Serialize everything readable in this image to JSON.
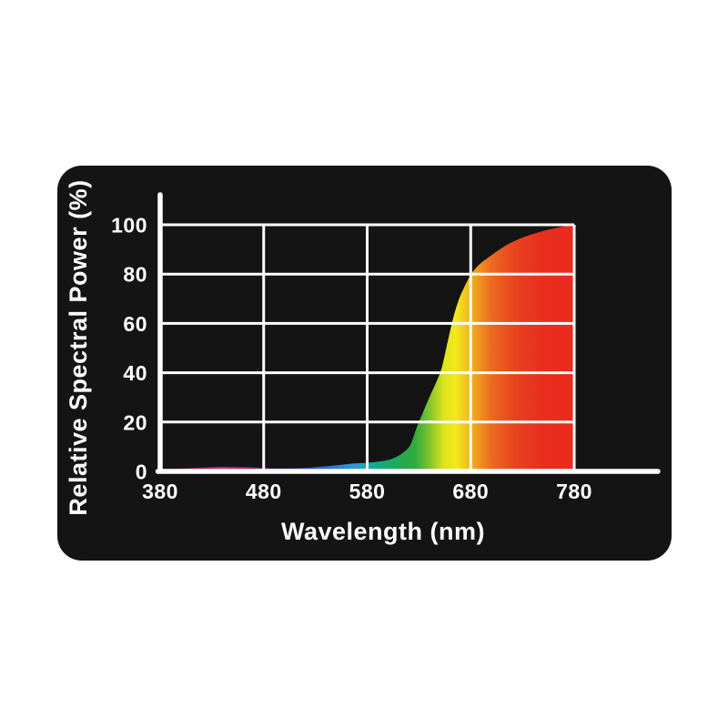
{
  "page": {
    "background_color": "#ffffff",
    "card_color": "#141414"
  },
  "chart_data": {
    "type": "area",
    "title": "",
    "xlabel": "Wavelength (nm)",
    "ylabel": "Relative Spectral Power (%)",
    "x_ticks": [
      "380",
      "480",
      "580",
      "680",
      "780"
    ],
    "y_ticks": [
      "0",
      "20",
      "40",
      "60",
      "80",
      "100"
    ],
    "xlim": [
      380,
      780
    ],
    "ylim": [
      0,
      100
    ],
    "grid": true,
    "grid_color": "#ffffff",
    "axis_color": "#ffffff",
    "fill_style": "spectral-gradient",
    "gradient_stops": [
      {
        "offset": 0.0,
        "color": "#2a081c"
      },
      {
        "offset": 0.055,
        "color": "#7c1751"
      },
      {
        "offset": 0.14,
        "color": "#c12b7d"
      },
      {
        "offset": 0.2,
        "color": "#ad2a78"
      },
      {
        "offset": 0.265,
        "color": "#7c2c82"
      },
      {
        "offset": 0.33,
        "color": "#40419f"
      },
      {
        "offset": 0.405,
        "color": "#2b72c8"
      },
      {
        "offset": 0.47,
        "color": "#2f9dd8"
      },
      {
        "offset": 0.52,
        "color": "#18a88c"
      },
      {
        "offset": 0.565,
        "color": "#1ea95a"
      },
      {
        "offset": 0.615,
        "color": "#2fab40"
      },
      {
        "offset": 0.65,
        "color": "#7fc42e"
      },
      {
        "offset": 0.685,
        "color": "#dfe31d"
      },
      {
        "offset": 0.715,
        "color": "#f2ea1b"
      },
      {
        "offset": 0.752,
        "color": "#f0b01d"
      },
      {
        "offset": 0.8,
        "color": "#ec6a20"
      },
      {
        "offset": 0.858,
        "color": "#e8431f"
      },
      {
        "offset": 0.92,
        "color": "#e92f1d"
      },
      {
        "offset": 1.0,
        "color": "#ea291d"
      }
    ],
    "points": [
      [
        380,
        0.2
      ],
      [
        392,
        0.8
      ],
      [
        405,
        1.3
      ],
      [
        420,
        1.6
      ],
      [
        435,
        1.8
      ],
      [
        450,
        1.8
      ],
      [
        465,
        1.7
      ],
      [
        480,
        1.4
      ],
      [
        495,
        1.2
      ],
      [
        510,
        1.3
      ],
      [
        525,
        1.6
      ],
      [
        540,
        2.1
      ],
      [
        555,
        2.7
      ],
      [
        568,
        3.2
      ],
      [
        580,
        3.5
      ],
      [
        590,
        3.9
      ],
      [
        600,
        4.6
      ],
      [
        608,
        5.8
      ],
      [
        616,
        8.0
      ],
      [
        622,
        11
      ],
      [
        628,
        18
      ],
      [
        634,
        24
      ],
      [
        640,
        30
      ],
      [
        646,
        35.5
      ],
      [
        652,
        42
      ],
      [
        658,
        53
      ],
      [
        663,
        62
      ],
      [
        668,
        69
      ],
      [
        673,
        74
      ],
      [
        679,
        79
      ],
      [
        683,
        81.5
      ],
      [
        690,
        84.5
      ],
      [
        698,
        87
      ],
      [
        708,
        90
      ],
      [
        718,
        92.5
      ],
      [
        730,
        94.8
      ],
      [
        742,
        96.5
      ],
      [
        755,
        98
      ],
      [
        768,
        99.2
      ],
      [
        780,
        100
      ]
    ]
  }
}
